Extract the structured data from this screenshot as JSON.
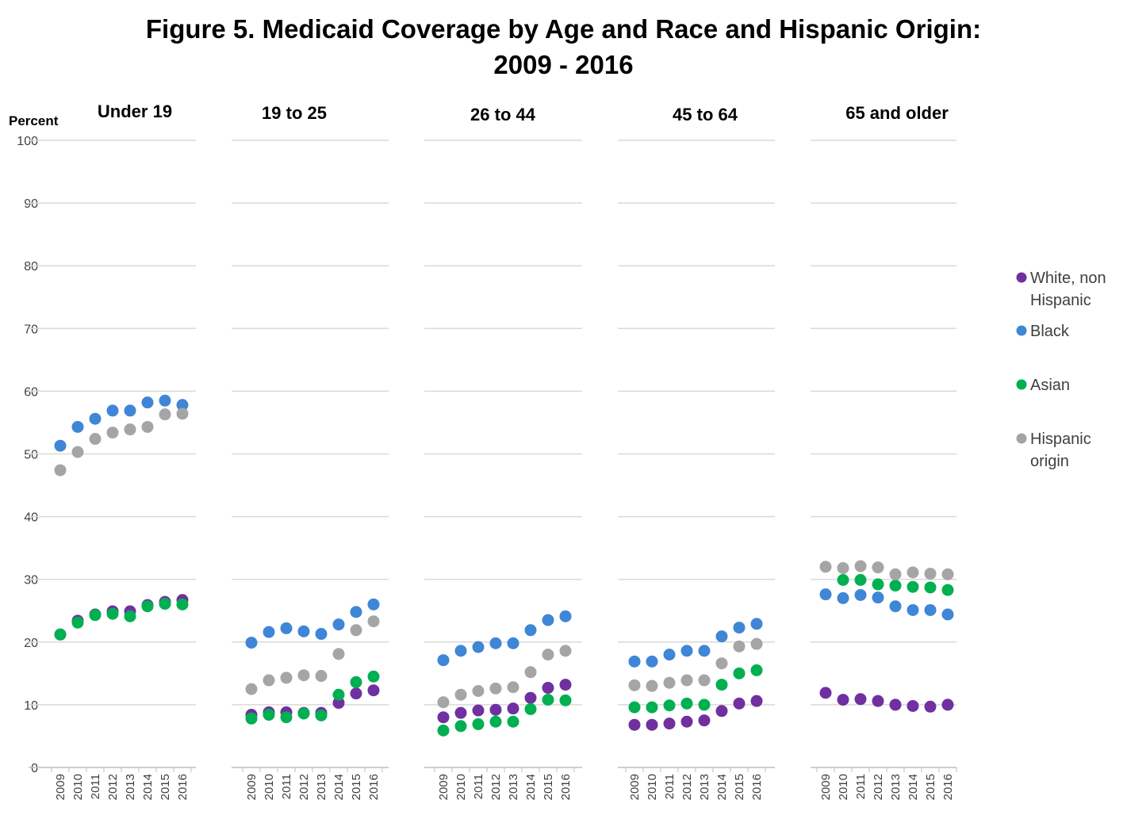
{
  "chart_data": {
    "type": "scatter",
    "title_line1": "Figure 5. Medicaid Coverage by Age and Race and Hispanic Origin:",
    "title_line2": "2009 - 2016",
    "ylabel": "Percent",
    "ylim": [
      0,
      100
    ],
    "yticks": [
      0,
      10,
      20,
      30,
      40,
      50,
      60,
      70,
      80,
      90,
      100
    ],
    "years": [
      "2009",
      "2010",
      "2011",
      "2012",
      "2013",
      "2014",
      "2015",
      "2016"
    ],
    "legend_position": "right",
    "legend": [
      {
        "key": "white",
        "lines": [
          "White, non",
          "Hispanic"
        ],
        "color": "#7030a0"
      },
      {
        "key": "black",
        "lines": [
          "Black"
        ],
        "color": "#3f86d6"
      },
      {
        "key": "asian",
        "lines": [
          "Asian"
        ],
        "color": "#00b050"
      },
      {
        "key": "hispanic",
        "lines": [
          "Hispanic",
          "origin"
        ],
        "color": "#a5a5a5"
      }
    ],
    "panels": [
      {
        "title": "Under 19",
        "series": {
          "white": [
            21.2,
            23.4,
            24.4,
            24.9,
            24.9,
            25.9,
            26.4,
            26.7
          ],
          "black": [
            51.3,
            54.3,
            55.6,
            56.9,
            56.9,
            58.2,
            58.5,
            57.8
          ],
          "asian": [
            21.2,
            23.1,
            24.3,
            24.5,
            24.1,
            25.7,
            26.1,
            26.0
          ],
          "hispanic": [
            47.4,
            50.3,
            52.4,
            53.4,
            53.9,
            54.3,
            56.3,
            56.4
          ]
        }
      },
      {
        "title": "19 to 25",
        "series": {
          "white": [
            8.4,
            8.8,
            8.8,
            8.7,
            8.7,
            10.3,
            11.8,
            12.3
          ],
          "black": [
            19.9,
            21.6,
            22.2,
            21.7,
            21.3,
            22.8,
            24.8,
            26.0
          ],
          "asian": [
            7.8,
            8.4,
            8.0,
            8.6,
            8.3,
            11.6,
            13.6,
            14.5
          ],
          "hispanic": [
            12.5,
            13.9,
            14.3,
            14.7,
            14.6,
            18.1,
            21.9,
            23.3
          ]
        }
      },
      {
        "title": "26 to 44",
        "series": {
          "white": [
            8.0,
            8.7,
            9.1,
            9.2,
            9.4,
            11.1,
            12.7,
            13.2
          ],
          "black": [
            17.1,
            18.6,
            19.2,
            19.8,
            19.8,
            21.9,
            23.5,
            24.1
          ],
          "asian": [
            5.9,
            6.6,
            6.9,
            7.3,
            7.3,
            9.3,
            10.8,
            10.7
          ],
          "hispanic": [
            10.4,
            11.6,
            12.2,
            12.6,
            12.8,
            15.2,
            18.0,
            18.6
          ]
        }
      },
      {
        "title": "45 to 64",
        "series": {
          "white": [
            6.8,
            6.8,
            7.0,
            7.3,
            7.5,
            9.0,
            10.2,
            10.6
          ],
          "black": [
            16.9,
            16.9,
            18.0,
            18.6,
            18.6,
            20.9,
            22.3,
            22.9
          ],
          "asian": [
            9.6,
            9.6,
            9.9,
            10.2,
            10.0,
            13.2,
            15.0,
            15.5
          ],
          "hispanic": [
            13.1,
            13.0,
            13.5,
            13.9,
            13.9,
            16.6,
            19.3,
            19.7
          ]
        }
      },
      {
        "title": "65 and older",
        "series": {
          "white": [
            11.9,
            10.8,
            10.9,
            10.6,
            10.0,
            9.8,
            9.7,
            10.0
          ],
          "black": [
            27.6,
            27.0,
            27.5,
            27.1,
            25.7,
            25.1,
            25.1,
            24.4
          ],
          "asian": [
            null,
            29.9,
            29.9,
            29.2,
            29.0,
            28.8,
            28.7,
            28.3
          ],
          "hispanic": [
            32.0,
            31.8,
            32.1,
            31.9,
            30.8,
            31.1,
            30.9,
            30.8
          ]
        }
      }
    ]
  }
}
